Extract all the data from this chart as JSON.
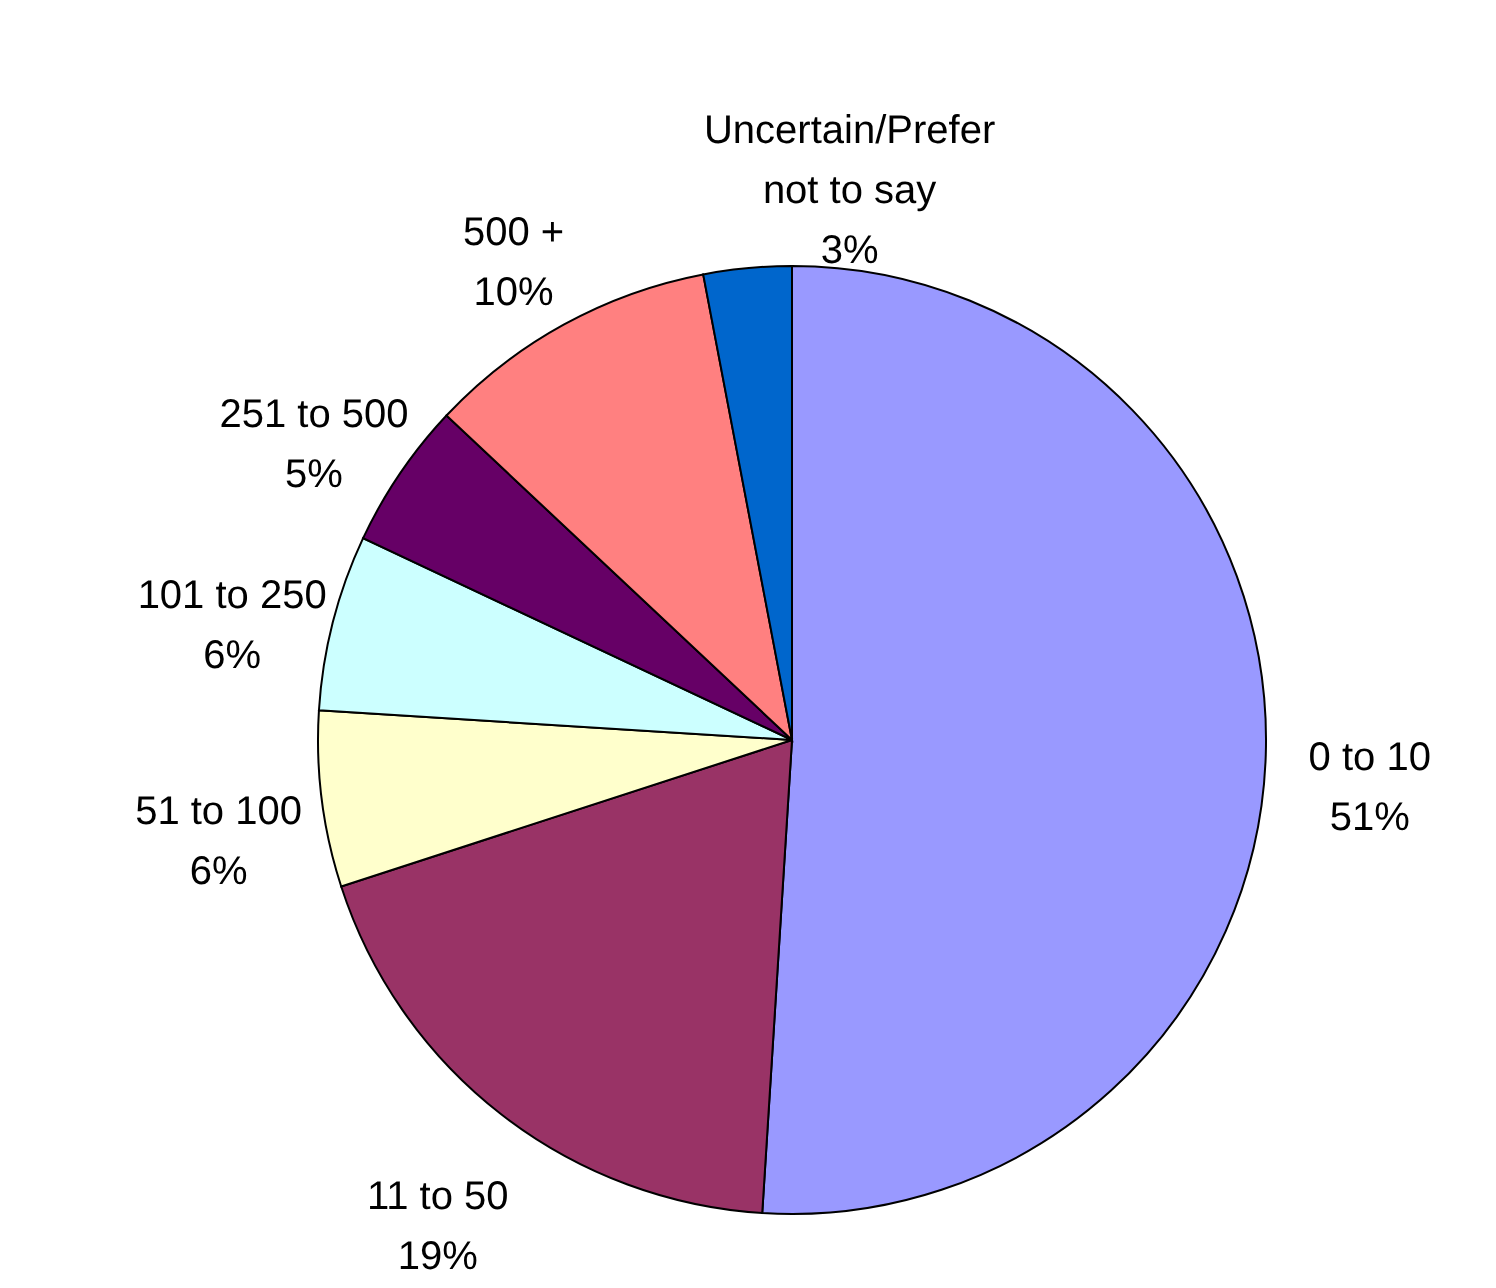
{
  "chart_data": {
    "type": "pie",
    "categories": [
      "0 to 10",
      "11 to 50",
      "51 to 100",
      "101 to 250",
      "251 to 500",
      "500 +",
      "Uncertain/Prefer not to say"
    ],
    "values": [
      51,
      19,
      6,
      6,
      5,
      10,
      3
    ],
    "colors": [
      "#9999ff",
      "#993366",
      "#ffffcc",
      "#ccffff",
      "#660066",
      "#ff8080",
      "#0066cc"
    ],
    "value_labels": [
      "51%",
      "19%",
      "6%",
      "6%",
      "5%",
      "10%",
      "3%"
    ]
  }
}
